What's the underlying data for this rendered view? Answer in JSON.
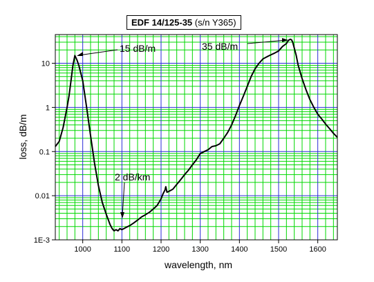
{
  "chart_data": {
    "type": "line",
    "title_main": "EDF 14/125-35",
    "title_sub": "(s/n Y365)",
    "xlabel": "wavelength, nm",
    "ylabel": "loss, dB/m",
    "xlim": [
      930,
      1650
    ],
    "ylim_log10": [
      -3,
      1.65
    ],
    "y_scale": "log",
    "grid": true,
    "x_ticks": [
      1000,
      1100,
      1200,
      1300,
      1400,
      1500,
      1600
    ],
    "x_tick_labels": [
      "1000",
      "1100",
      "1200",
      "1300",
      "1400",
      "1500",
      "1600"
    ],
    "y_ticks": [
      0.001,
      0.01,
      0.1,
      1,
      10
    ],
    "y_tick_labels": [
      "1E-3",
      "0.01",
      "0.1",
      "1",
      "10"
    ],
    "annotations": [
      {
        "text": "15 dB/m",
        "x": 980,
        "y": 15
      },
      {
        "text": "35 dB/m",
        "x": 1530,
        "y": 35
      },
      {
        "text": "2 dB/km",
        "x": 1097,
        "y": 0.0025
      }
    ],
    "series": [
      {
        "color": "#000000",
        "x": [
          930,
          940,
          950,
          960,
          965,
          970,
          975,
          980,
          985,
          990,
          1000,
          1010,
          1020,
          1030,
          1040,
          1050,
          1060,
          1070,
          1075,
          1080,
          1085,
          1090,
          1095,
          1100,
          1105,
          1110,
          1120,
          1130,
          1140,
          1150,
          1160,
          1170,
          1180,
          1190,
          1200,
          1205,
          1210,
          1212,
          1215,
          1220,
          1230,
          1240,
          1250,
          1260,
          1270,
          1280,
          1290,
          1300,
          1310,
          1320,
          1330,
          1340,
          1350,
          1360,
          1370,
          1380,
          1390,
          1400,
          1410,
          1420,
          1430,
          1440,
          1450,
          1460,
          1470,
          1480,
          1490,
          1500,
          1510,
          1520,
          1525,
          1530,
          1533,
          1536,
          1540,
          1545,
          1550,
          1560,
          1570,
          1580,
          1590,
          1600,
          1610,
          1620,
          1630,
          1640,
          1650
        ],
        "values": [
          0.13,
          0.17,
          0.35,
          1.0,
          1.8,
          4.0,
          9.0,
          15.0,
          12.0,
          9.0,
          4.0,
          1.0,
          0.23,
          0.055,
          0.017,
          0.007,
          0.0038,
          0.0022,
          0.0018,
          0.0016,
          0.0017,
          0.0016,
          0.0018,
          0.0017,
          0.0018,
          0.0019,
          0.0021,
          0.0024,
          0.0028,
          0.0033,
          0.0037,
          0.0042,
          0.005,
          0.006,
          0.0085,
          0.011,
          0.0135,
          0.016,
          0.012,
          0.0125,
          0.014,
          0.018,
          0.023,
          0.03,
          0.038,
          0.05,
          0.065,
          0.09,
          0.1,
          0.11,
          0.13,
          0.135,
          0.15,
          0.2,
          0.27,
          0.4,
          0.65,
          1.1,
          1.8,
          3.0,
          5.0,
          7.5,
          10.0,
          12.5,
          14.0,
          15.5,
          17.0,
          19.0,
          24.0,
          28.0,
          33.0,
          35.0,
          34.0,
          30.0,
          22.0,
          15.0,
          9.0,
          4.5,
          2.5,
          1.5,
          1.0,
          0.7,
          0.55,
          0.42,
          0.33,
          0.26,
          0.21
        ]
      }
    ]
  }
}
